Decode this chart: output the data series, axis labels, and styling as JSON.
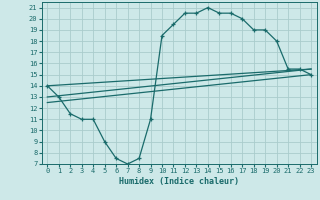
{
  "title": "",
  "xlabel": "Humidex (Indice chaleur)",
  "bg_color": "#cde8e8",
  "line_color": "#1a6b6b",
  "grid_color": "#aacccc",
  "xlim": [
    -0.5,
    23.5
  ],
  "ylim": [
    7,
    21.5
  ],
  "xticks": [
    0,
    1,
    2,
    3,
    4,
    5,
    6,
    7,
    8,
    9,
    10,
    11,
    12,
    13,
    14,
    15,
    16,
    17,
    18,
    19,
    20,
    21,
    22,
    23
  ],
  "yticks": [
    7,
    8,
    9,
    10,
    11,
    12,
    13,
    14,
    15,
    16,
    17,
    18,
    19,
    20,
    21
  ],
  "curve1_x": [
    0,
    1,
    2,
    3,
    4,
    5,
    6,
    7,
    8,
    9,
    10,
    11,
    12,
    13,
    14,
    15,
    16,
    17,
    18,
    19,
    20,
    21,
    22,
    23
  ],
  "curve1_y": [
    14,
    13,
    11.5,
    11,
    11,
    9,
    7.5,
    7,
    7.5,
    11,
    18.5,
    19.5,
    20.5,
    20.5,
    21,
    20.5,
    20.5,
    20,
    19,
    19,
    18,
    15.5,
    15.5,
    15
  ],
  "line1_x": [
    0,
    23
  ],
  "line1_y": [
    14,
    15.5
  ],
  "line2_x": [
    0,
    23
  ],
  "line2_y": [
    13,
    15.5
  ],
  "line3_x": [
    0,
    23
  ],
  "line3_y": [
    12.5,
    15
  ]
}
